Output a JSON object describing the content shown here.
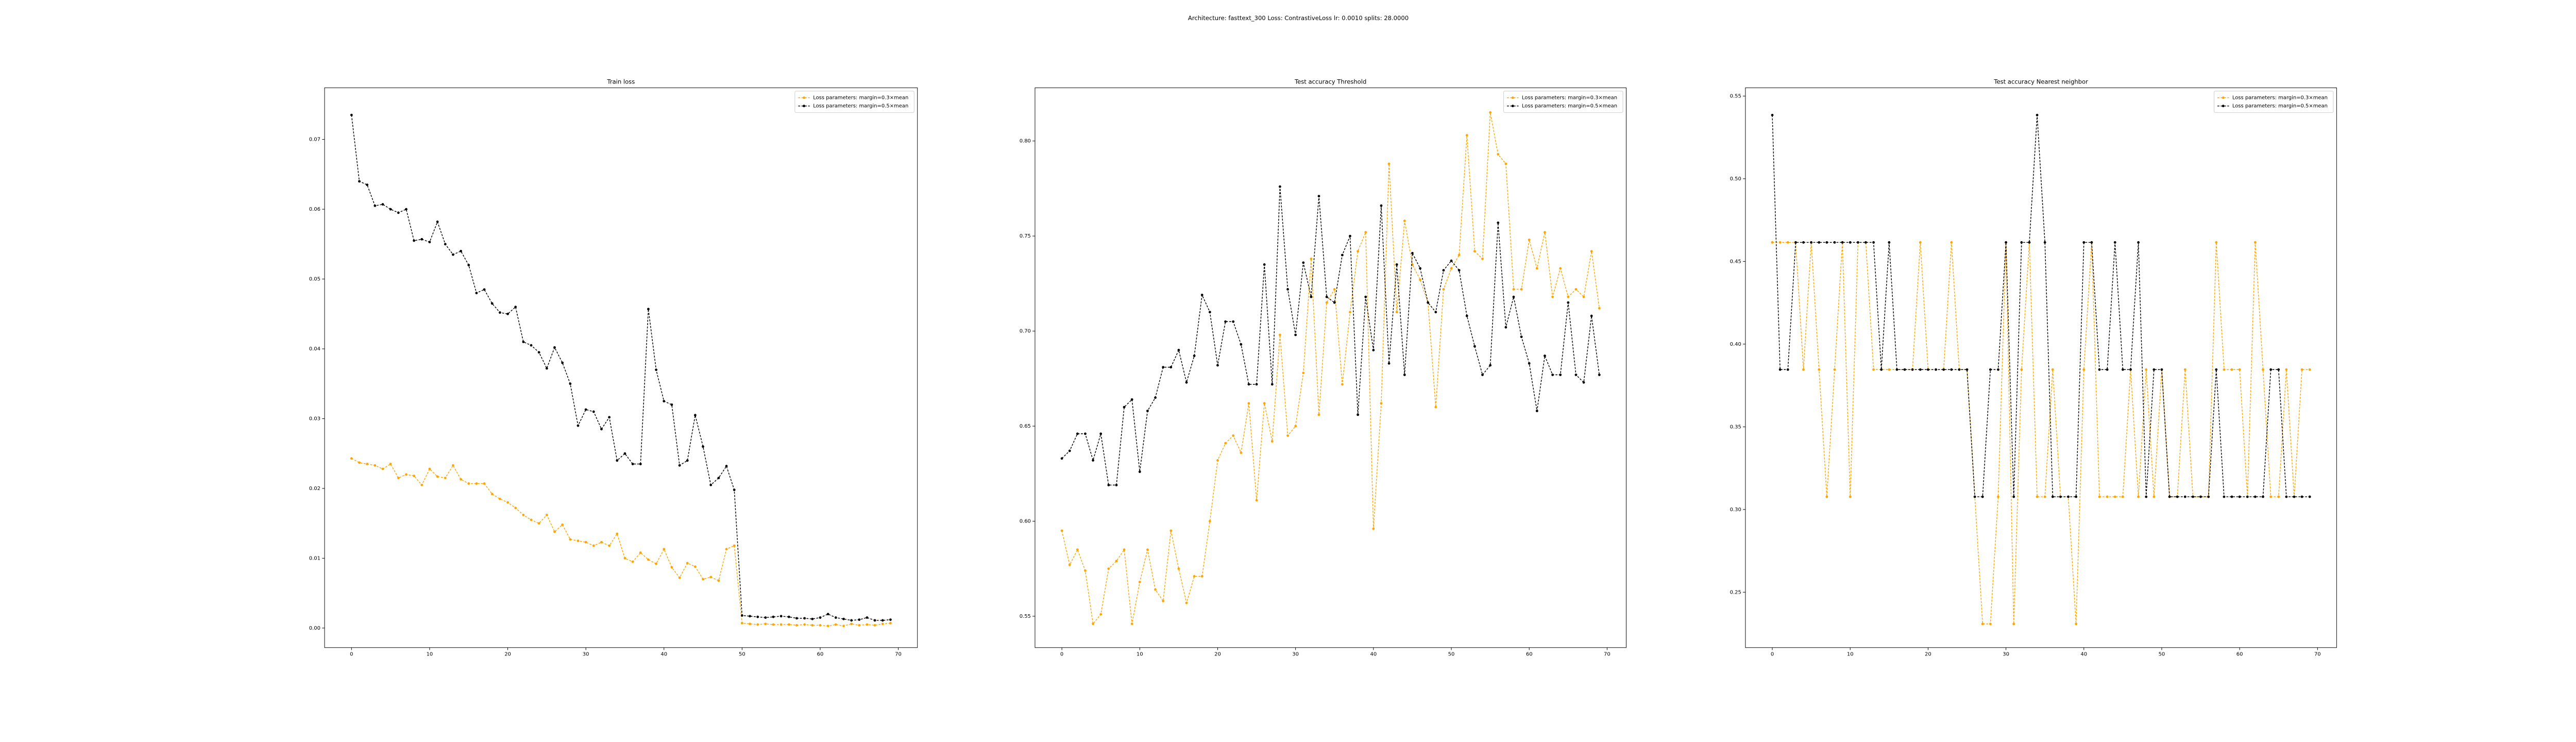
{
  "title": "Architecture: fasttext_300 Loss: ContrastiveLoss lr: 0.0010 splits: 28.0000",
  "chart_data": [
    {
      "type": "line",
      "title": "Train loss",
      "legend": "upper right",
      "x": [
        0,
        1,
        2,
        3,
        4,
        5,
        6,
        7,
        8,
        9,
        10,
        11,
        12,
        13,
        14,
        15,
        16,
        17,
        18,
        19,
        20,
        21,
        22,
        23,
        24,
        25,
        26,
        27,
        28,
        29,
        30,
        31,
        32,
        33,
        34,
        35,
        36,
        37,
        38,
        39,
        40,
        41,
        42,
        43,
        44,
        45,
        46,
        47,
        48,
        49,
        50,
        51,
        52,
        53,
        54,
        55,
        56,
        57,
        58,
        59,
        60,
        61,
        62,
        63,
        64,
        65,
        66,
        67,
        68,
        69
      ],
      "xlim": [
        -3.45,
        72.45
      ],
      "xticks": [
        0,
        10,
        20,
        30,
        40,
        50,
        60,
        70
      ],
      "ylim": [
        -0.0028,
        0.0774
      ],
      "yticks": [
        {
          "value": 0,
          "label": "0.00"
        },
        {
          "value": 0.01,
          "label": "0.01"
        },
        {
          "value": 0.02,
          "label": "0.02"
        },
        {
          "value": 0.03,
          "label": "0.03"
        },
        {
          "value": 0.04,
          "label": "0.04"
        },
        {
          "value": 0.05,
          "label": "0.05"
        },
        {
          "value": 0.06,
          "label": "0.06"
        },
        {
          "value": 0.07,
          "label": "0.07"
        }
      ],
      "series": [
        {
          "name": "Loss parameters: margin=0.3×mean",
          "color": "#ffa500",
          "values": [
            0.0243,
            0.0237,
            0.0235,
            0.0233,
            0.0228,
            0.0235,
            0.0215,
            0.022,
            0.0218,
            0.0205,
            0.0228,
            0.0217,
            0.0215,
            0.0233,
            0.0213,
            0.0207,
            0.0207,
            0.0207,
            0.0192,
            0.0185,
            0.018,
            0.0172,
            0.0162,
            0.0155,
            0.015,
            0.0162,
            0.0138,
            0.0148,
            0.0127,
            0.0125,
            0.0123,
            0.0118,
            0.0123,
            0.0118,
            0.0135,
            0.01,
            0.0095,
            0.0108,
            0.0098,
            0.0092,
            0.0113,
            0.0087,
            0.0072,
            0.0093,
            0.0088,
            0.007,
            0.0073,
            0.0068,
            0.0113,
            0.0118,
            0.0007,
            0.0006,
            0.0005,
            0.0006,
            0.0005,
            0.0005,
            0.0005,
            0.0004,
            0.0005,
            0.0004,
            0.0004,
            0.0003,
            0.0005,
            0.0003,
            0.0006,
            0.0004,
            0.0005,
            0.0004,
            0.0006,
            0.0007
          ]
        },
        {
          "name": "Loss parameters: margin=0.5×mean",
          "color": "#000000",
          "values": [
            0.0735,
            0.064,
            0.0635,
            0.0605,
            0.0607,
            0.06,
            0.0595,
            0.06,
            0.0555,
            0.0557,
            0.0553,
            0.0582,
            0.055,
            0.0535,
            0.054,
            0.052,
            0.048,
            0.0485,
            0.0465,
            0.0452,
            0.045,
            0.046,
            0.041,
            0.0405,
            0.0395,
            0.0372,
            0.0402,
            0.038,
            0.035,
            0.029,
            0.0313,
            0.031,
            0.0285,
            0.0302,
            0.024,
            0.025,
            0.0235,
            0.0235,
            0.0457,
            0.037,
            0.0325,
            0.032,
            0.0233,
            0.024,
            0.0305,
            0.026,
            0.0205,
            0.0215,
            0.0232,
            0.0198,
            0.0018,
            0.0017,
            0.0016,
            0.0015,
            0.0016,
            0.0017,
            0.0016,
            0.0014,
            0.0014,
            0.0013,
            0.0015,
            0.002,
            0.0015,
            0.0013,
            0.0011,
            0.0012,
            0.0015,
            0.0011,
            0.0011,
            0.0012
          ]
        }
      ]
    },
    {
      "type": "line",
      "title": "Test accuracy Threshold",
      "legend": "upper right",
      "x": [
        0,
        1,
        2,
        3,
        4,
        5,
        6,
        7,
        8,
        9,
        10,
        11,
        12,
        13,
        14,
        15,
        16,
        17,
        18,
        19,
        20,
        21,
        22,
        23,
        24,
        25,
        26,
        27,
        28,
        29,
        30,
        31,
        32,
        33,
        34,
        35,
        36,
        37,
        38,
        39,
        40,
        41,
        42,
        43,
        44,
        45,
        46,
        47,
        48,
        49,
        50,
        51,
        52,
        53,
        54,
        55,
        56,
        57,
        58,
        59,
        60,
        61,
        62,
        63,
        64,
        65,
        66,
        67,
        68,
        69
      ],
      "xlim": [
        -3.45,
        72.45
      ],
      "xticks": [
        0,
        10,
        20,
        30,
        40,
        50,
        60,
        70
      ],
      "ylim": [
        0.5335,
        0.828
      ],
      "yticks": [
        0.55,
        {
          "value": 0.6,
          "label": "0.60"
        },
        0.65,
        {
          "value": 0.7,
          "label": "0.70"
        },
        0.75,
        {
          "value": 0.8,
          "label": "0.80"
        }
      ],
      "series": [
        {
          "name": "Loss parameters: margin=0.3×mean",
          "color": "#ffa500",
          "values": [
            0.595,
            0.577,
            0.585,
            0.574,
            0.546,
            0.551,
            0.575,
            0.579,
            0.585,
            0.546,
            0.568,
            0.585,
            0.564,
            0.558,
            0.595,
            0.575,
            0.557,
            0.571,
            0.571,
            0.6,
            0.632,
            0.641,
            0.645,
            0.636,
            0.662,
            0.611,
            0.662,
            0.642,
            0.698,
            0.645,
            0.65,
            0.678,
            0.738,
            0.656,
            0.715,
            0.722,
            0.672,
            0.71,
            0.742,
            0.752,
            0.596,
            0.662,
            0.788,
            0.71,
            0.758,
            0.735,
            0.727,
            0.715,
            0.66,
            0.722,
            0.733,
            0.74,
            0.803,
            0.742,
            0.738,
            0.815,
            0.793,
            0.788,
            0.722,
            0.722,
            0.748,
            0.733,
            0.752,
            0.718,
            0.733,
            0.718,
            0.722,
            0.718,
            0.742,
            0.712
          ]
        },
        {
          "name": "Loss parameters: margin=0.5×mean",
          "color": "#000000",
          "values": [
            0.633,
            0.637,
            0.646,
            0.646,
            0.632,
            0.646,
            0.619,
            0.619,
            0.66,
            0.664,
            0.626,
            0.658,
            0.665,
            0.681,
            0.681,
            0.69,
            0.673,
            0.687,
            0.719,
            0.71,
            0.682,
            0.705,
            0.705,
            0.693,
            0.672,
            0.672,
            0.735,
            0.672,
            0.776,
            0.722,
            0.698,
            0.736,
            0.718,
            0.771,
            0.718,
            0.715,
            0.74,
            0.75,
            0.656,
            0.718,
            0.69,
            0.766,
            0.683,
            0.735,
            0.677,
            0.741,
            0.733,
            0.715,
            0.71,
            0.732,
            0.737,
            0.732,
            0.708,
            0.692,
            0.677,
            0.682,
            0.757,
            0.702,
            0.718,
            0.697,
            0.683,
            0.658,
            0.687,
            0.677,
            0.677,
            0.715,
            0.677,
            0.673,
            0.708,
            0.677
          ]
        }
      ]
    },
    {
      "type": "line",
      "title": "Test accuracy Nearest neighbor",
      "legend": "upper right",
      "x": [
        0,
        1,
        2,
        3,
        4,
        5,
        6,
        7,
        8,
        9,
        10,
        11,
        12,
        13,
        14,
        15,
        16,
        17,
        18,
        19,
        20,
        21,
        22,
        23,
        24,
        25,
        26,
        27,
        28,
        29,
        30,
        31,
        32,
        33,
        34,
        35,
        36,
        37,
        38,
        39,
        40,
        41,
        42,
        43,
        44,
        45,
        46,
        47,
        48,
        49,
        50,
        51,
        52,
        53,
        54,
        55,
        56,
        57,
        58,
        59,
        60,
        61,
        62,
        63,
        64,
        65,
        66,
        67,
        68,
        69
      ],
      "xlim": [
        -3.45,
        72.45
      ],
      "xticks": [
        0,
        10,
        20,
        30,
        40,
        50,
        60,
        70
      ],
      "ylim": [
        0.2165,
        0.555
      ],
      "yticks": [
        0.25,
        {
          "value": 0.3,
          "label": "0.30"
        },
        0.35,
        {
          "value": 0.4,
          "label": "0.40"
        },
        0.45,
        {
          "value": 0.5,
          "label": "0.50"
        },
        0.55
      ],
      "series": [
        {
          "name": "Loss parameters: margin=0.3×mean",
          "color": "#ffa500",
          "values": [
            0.4615,
            0.4615,
            0.4615,
            0.4615,
            0.3846,
            0.4615,
            0.3846,
            0.3077,
            0.3846,
            0.4615,
            0.3077,
            0.4615,
            0.4615,
            0.3846,
            0.3846,
            0.3846,
            0.3846,
            0.3846,
            0.3846,
            0.4615,
            0.3846,
            0.3846,
            0.3846,
            0.4615,
            0.3846,
            0.3846,
            0.3077,
            0.2308,
            0.2308,
            0.3077,
            0.4615,
            0.2308,
            0.3846,
            0.4615,
            0.3077,
            0.3077,
            0.3846,
            0.3077,
            0.3077,
            0.2308,
            0.3846,
            0.4615,
            0.3077,
            0.3077,
            0.3077,
            0.3077,
            0.3846,
            0.3077,
            0.3846,
            0.3077,
            0.3846,
            0.3077,
            0.3077,
            0.3846,
            0.3077,
            0.3077,
            0.3077,
            0.4615,
            0.3846,
            0.3846,
            0.3846,
            0.3077,
            0.4615,
            0.3846,
            0.3077,
            0.3077,
            0.3846,
            0.3077,
            0.3846,
            0.3846
          ]
        },
        {
          "name": "Loss parameters: margin=0.5×mean",
          "color": "#000000",
          "values": [
            0.5385,
            0.3846,
            0.3846,
            0.4615,
            0.4615,
            0.4615,
            0.4615,
            0.4615,
            0.4615,
            0.4615,
            0.4615,
            0.4615,
            0.4615,
            0.4615,
            0.3846,
            0.4615,
            0.3846,
            0.3846,
            0.3846,
            0.3846,
            0.3846,
            0.3846,
            0.3846,
            0.3846,
            0.3846,
            0.3846,
            0.3077,
            0.3077,
            0.3846,
            0.3846,
            0.4615,
            0.3077,
            0.4615,
            0.4615,
            0.5385,
            0.4615,
            0.3077,
            0.3077,
            0.3077,
            0.3077,
            0.4615,
            0.4615,
            0.3846,
            0.3846,
            0.4615,
            0.3846,
            0.3846,
            0.4615,
            0.3077,
            0.3846,
            0.3846,
            0.3077,
            0.3077,
            0.3077,
            0.3077,
            0.3077,
            0.3077,
            0.3846,
            0.3077,
            0.3077,
            0.3077,
            0.3077,
            0.3077,
            0.3077,
            0.3846,
            0.3846,
            0.3077,
            0.3077,
            0.3077,
            0.3077
          ]
        }
      ]
    }
  ]
}
